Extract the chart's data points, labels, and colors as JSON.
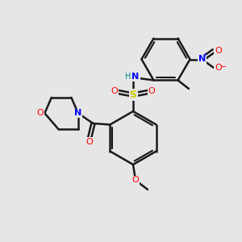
{
  "bg_color": "#e6e6e6",
  "bond_color": "#1a1a1a",
  "bond_width": 1.8,
  "atom_colors": {
    "N": "#0000ff",
    "O": "#ff0000",
    "S": "#cccc00",
    "H": "#008b8b",
    "C": "#1a1a1a"
  },
  "figsize": [
    3.0,
    3.0
  ],
  "dpi": 100
}
